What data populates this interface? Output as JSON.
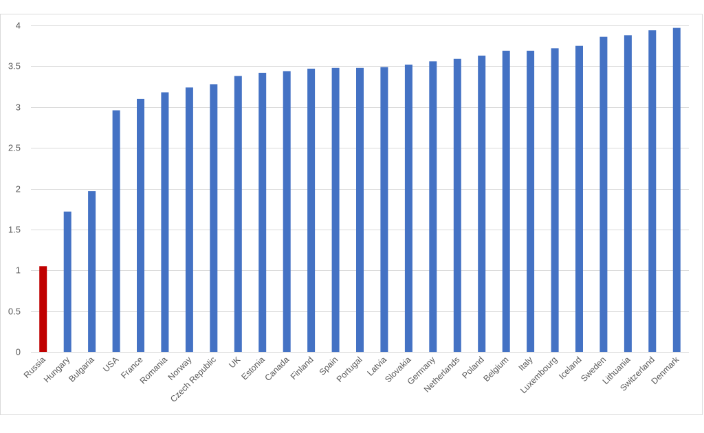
{
  "chart_data": {
    "type": "bar",
    "title": "",
    "xlabel": "",
    "ylabel": "",
    "ylim": [
      0,
      4
    ],
    "yticks": [
      "0",
      "0.5",
      "1",
      "1.5",
      "2",
      "2.5",
      "3",
      "3.5",
      "4"
    ],
    "grid": true,
    "legend": "none",
    "categories": [
      "Russia",
      "Hungary",
      "Bulgaria",
      "USA",
      "France",
      "Romania",
      "Norway",
      "Czech Republic",
      "UK",
      "Estonia",
      "Canada",
      "Finland",
      "Spain",
      "Portugal",
      "Latvia",
      "Slovakia",
      "Germany",
      "Netherlands",
      "Poland",
      "Belgium",
      "Italy",
      "Luxembourg",
      "Iceland",
      "Sweden",
      "Lithuania",
      "Switzerland",
      "Denmark"
    ],
    "values": [
      1.05,
      1.72,
      1.97,
      2.96,
      3.1,
      3.18,
      3.24,
      3.28,
      3.38,
      3.42,
      3.44,
      3.47,
      3.48,
      3.48,
      3.49,
      3.52,
      3.56,
      3.59,
      3.63,
      3.69,
      3.69,
      3.72,
      3.75,
      3.86,
      3.88,
      3.94,
      3.97
    ],
    "colors": {
      "default": "#4472c4",
      "highlight": "#c00000",
      "highlight_category": "Russia"
    }
  }
}
